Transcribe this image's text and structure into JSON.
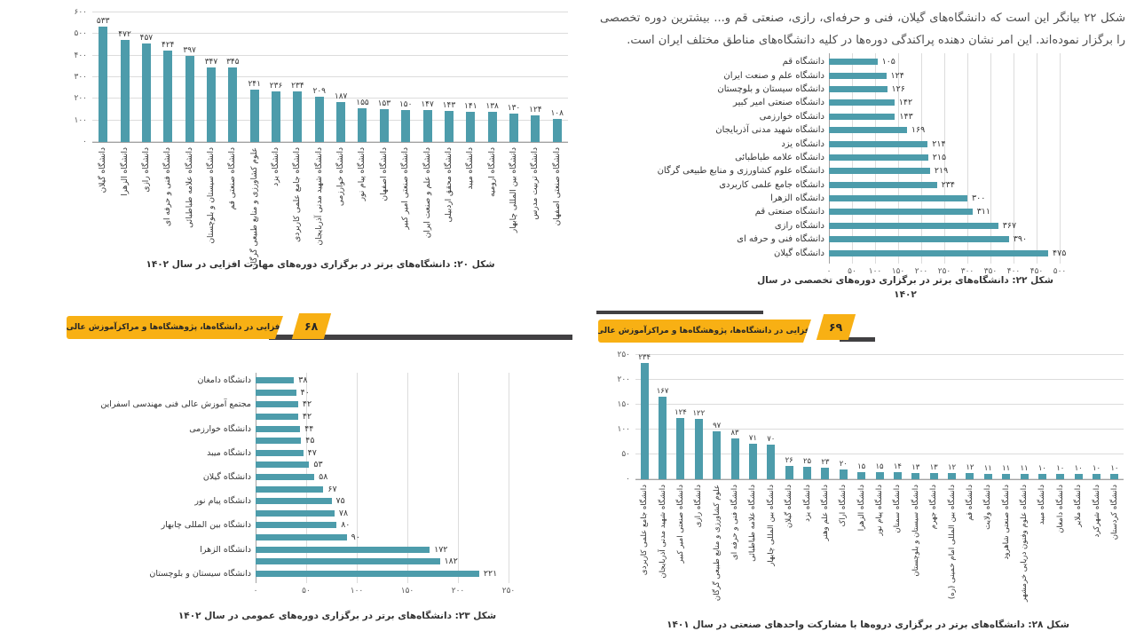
{
  "page": {
    "paragraph": "شکل ۲۲ بیانگر این است که دانشگاه‌های گیلان، فنی و حرفه‌ای، رازی، صنعتی قم و... بیشترین دوره تخصصی را برگزار نموده‌اند. این امر نشان دهنده پراکندگی دوره‌ها در کلیه دانشگاه‌های مناطق مختلف ایران است."
  },
  "banners": [
    {
      "page_number": "۶۸",
      "title": "مهارت‌افزایی در دانشگاه‌ها، پژوهشگاه‌ها و مراکزآموزش عالی کشور"
    },
    {
      "page_number": "۶۹",
      "title": "مهارت‌افزایی در دانشگاه‌ها، پژوهشگاه‌ها و مراکزآموزش عالی کشور"
    }
  ],
  "colors": {
    "bar": "#4d9cab",
    "banner": "#F8B014",
    "banner_shadow": "#414042",
    "grid": "#dcdcdc",
    "axis": "#a3a3a3",
    "text": "#3a3a3a"
  },
  "chart_data": [
    {
      "id": "fig20",
      "type": "bar",
      "orientation": "vertical",
      "title": "شکل ۲۰: دانشگاه‌های برتر در برگزاری دوره‌های مهارت افزایی در سال ۱۴۰۲",
      "ylim": [
        0,
        600
      ],
      "ystep": 100,
      "grid": true,
      "categories": [
        "دانشگاه گیلان",
        "دانشگاه الزهرا",
        "دانشگاه رازی",
        "دانشگاه فنی و حرفه ای",
        "دانشگاه علامه طباطبائی",
        "دانشگاه سیستان و بلوچستان",
        "دانشگاه صنعتی قم",
        "علوم کشاورزی و منابع طبیعی گرگان",
        "دانشگاه یزد",
        "دانشگاه جامع علمی کاربردی",
        "دانشگاه شهید مدنی آذربایجان",
        "دانشگاه خوارزمی",
        "دانشگاه پیام نور",
        "دانشگاه اصفهان",
        "دانشگاه صنعتی امیر کبیر",
        "دانشگاه علم و صنعت ایران",
        "دانشگاه محقق اردبیلی",
        "دانشگاه میبد",
        "دانشگاه ارومیه",
        "دانشگاه بین المللی چابهار",
        "دانشگاه تربیت مدرس",
        "دانشگاه صنعتی اصفهان"
      ],
      "values": [
        533,
        472,
        457,
        424,
        397,
        347,
        345,
        241,
        236,
        234,
        209,
        187,
        155,
        153,
        150,
        147,
        143,
        141,
        138,
        130,
        124,
        108
      ]
    },
    {
      "id": "fig22",
      "type": "bar",
      "orientation": "horizontal",
      "title": "شکل ۲۲: دانشگاه‌های برتر در برگزاری دوره‌های  تخصصی در سال",
      "title_line2": "۱۴۰۲",
      "xlim": [
        0,
        500
      ],
      "xstep": 50,
      "grid": true,
      "categories": [
        "دانشگاه قم",
        "دانشگاه علم و صنعت ایران",
        "دانشگاه سیستان و بلوچستان",
        "دانشگاه صنعتی امیر کبیر",
        "دانشگاه خوارزمی",
        "دانشگاه شهید مدنی آذربایجان",
        "دانشگاه یزد",
        "دانشگاه علامه طباطبائی",
        "دانشگاه علوم کشاورزی و منابع طبیعی گرگان",
        "دانشگاه جامع علمی کاربردی",
        "دانشگاه الزهرا",
        "دانشگاه صنعتی قم",
        "دانشگاه رازی",
        "دانشگاه فنی و حرفه ای",
        "دانشگاه گیلان"
      ],
      "values": [
        105,
        124,
        126,
        142,
        143,
        169,
        214,
        215,
        219,
        234,
        300,
        311,
        367,
        390,
        475
      ]
    },
    {
      "id": "fig23",
      "type": "bar",
      "orientation": "horizontal",
      "title": "شکل ۲۳: دانشگاه‌های برتر در برگزاری دوره‌های عمومی در سال ۱۴۰۲",
      "xlim": [
        0,
        250
      ],
      "xstep": 50,
      "grid": true,
      "axis_label_every": 2,
      "categories": [
        "دانشگاه دامغان",
        "",
        "مجتمع آموزش عالی فنی مهندسی اسفراین",
        "",
        "دانشگاه خوارزمی",
        "",
        "دانشگاه میبد",
        "",
        "دانشگاه گیلان",
        "",
        "دانشگاه پیام نور",
        "",
        "دانشگاه بین المللی چابهار",
        "",
        "دانشگاه الزهرا",
        "",
        "دانشگاه سیستان و بلوچستان"
      ],
      "values": [
        38,
        40,
        42,
        42,
        44,
        45,
        47,
        53,
        58,
        67,
        75,
        78,
        80,
        90,
        172,
        182,
        221
      ]
    },
    {
      "id": "fig28",
      "type": "bar",
      "orientation": "vertical",
      "title": "شکل ۲۸: دانشگاه‌های برتر در برگزاری دروه‌ها با مشارکت واحدهای صنعتی در سال ۱۴۰۱",
      "ylim": [
        0,
        250
      ],
      "ystep": 50,
      "grid": true,
      "categories": [
        "دانشگاه جامع علمی کاربردی",
        "دانشگاه شهید مدنی آذربایجان",
        "دانشگاه صنعتی امیر کبیر",
        "دانشگاه رازی",
        "علوم کشاورزی و منابع طبیعی گرگان",
        "دانشگاه فنی و حرفه ای",
        "دانشگاه علامه طباطبائی",
        "دانشگاه بین المللی چابهار",
        "دانشگاه گیلان",
        "دانشگاه یزد",
        "دانشگاه علم وهنر",
        "دانشگاه اراک",
        "دانشگاه الزهرا",
        "دانشگاه پیام نور",
        "دانشگاه سمنان",
        "دانشگاه سیستان و بلوچستان",
        "دانشگاه جهرم",
        "دانشگاه بین المللی امام خمینی (ره)",
        "دانشگاه قم",
        "دانشگاه ولایت",
        "دانشگاه صنعتی شاهرود",
        "دانشگاه علوم وفنون دریایی خرمشهر",
        "دانشگاه میبد",
        "دانشگاه دامغان",
        "دانشگاه ملایر",
        "دانشگاه شهرکرد",
        "دانشگاه کردستان"
      ],
      "values": [
        234,
        167,
        124,
        122,
        97,
        83,
        71,
        70,
        26,
        25,
        23,
        20,
        15,
        15,
        14,
        13,
        13,
        12,
        12,
        11,
        11,
        11,
        10,
        10,
        10,
        10,
        10
      ]
    }
  ]
}
